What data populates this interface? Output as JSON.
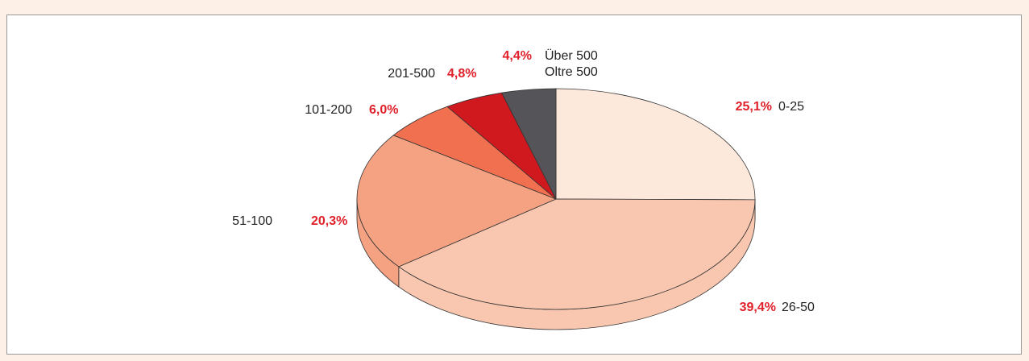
{
  "chart_data": {
    "type": "pie",
    "categories": [
      "0-25",
      "26-50",
      "51-100",
      "101-200",
      "201-500",
      "Über 500\nOltre 500"
    ],
    "values": [
      25.1,
      39.4,
      20.3,
      6.0,
      4.8,
      4.4
    ],
    "value_labels": [
      "25,1%",
      "39,4%",
      "20,3%",
      "6,0%",
      "4,8%",
      "4,4%"
    ],
    "colors": [
      "#fde8dc",
      "#f9c7b0",
      "#f5a283",
      "#f07050",
      "#d0181f",
      "#555559"
    ]
  }
}
